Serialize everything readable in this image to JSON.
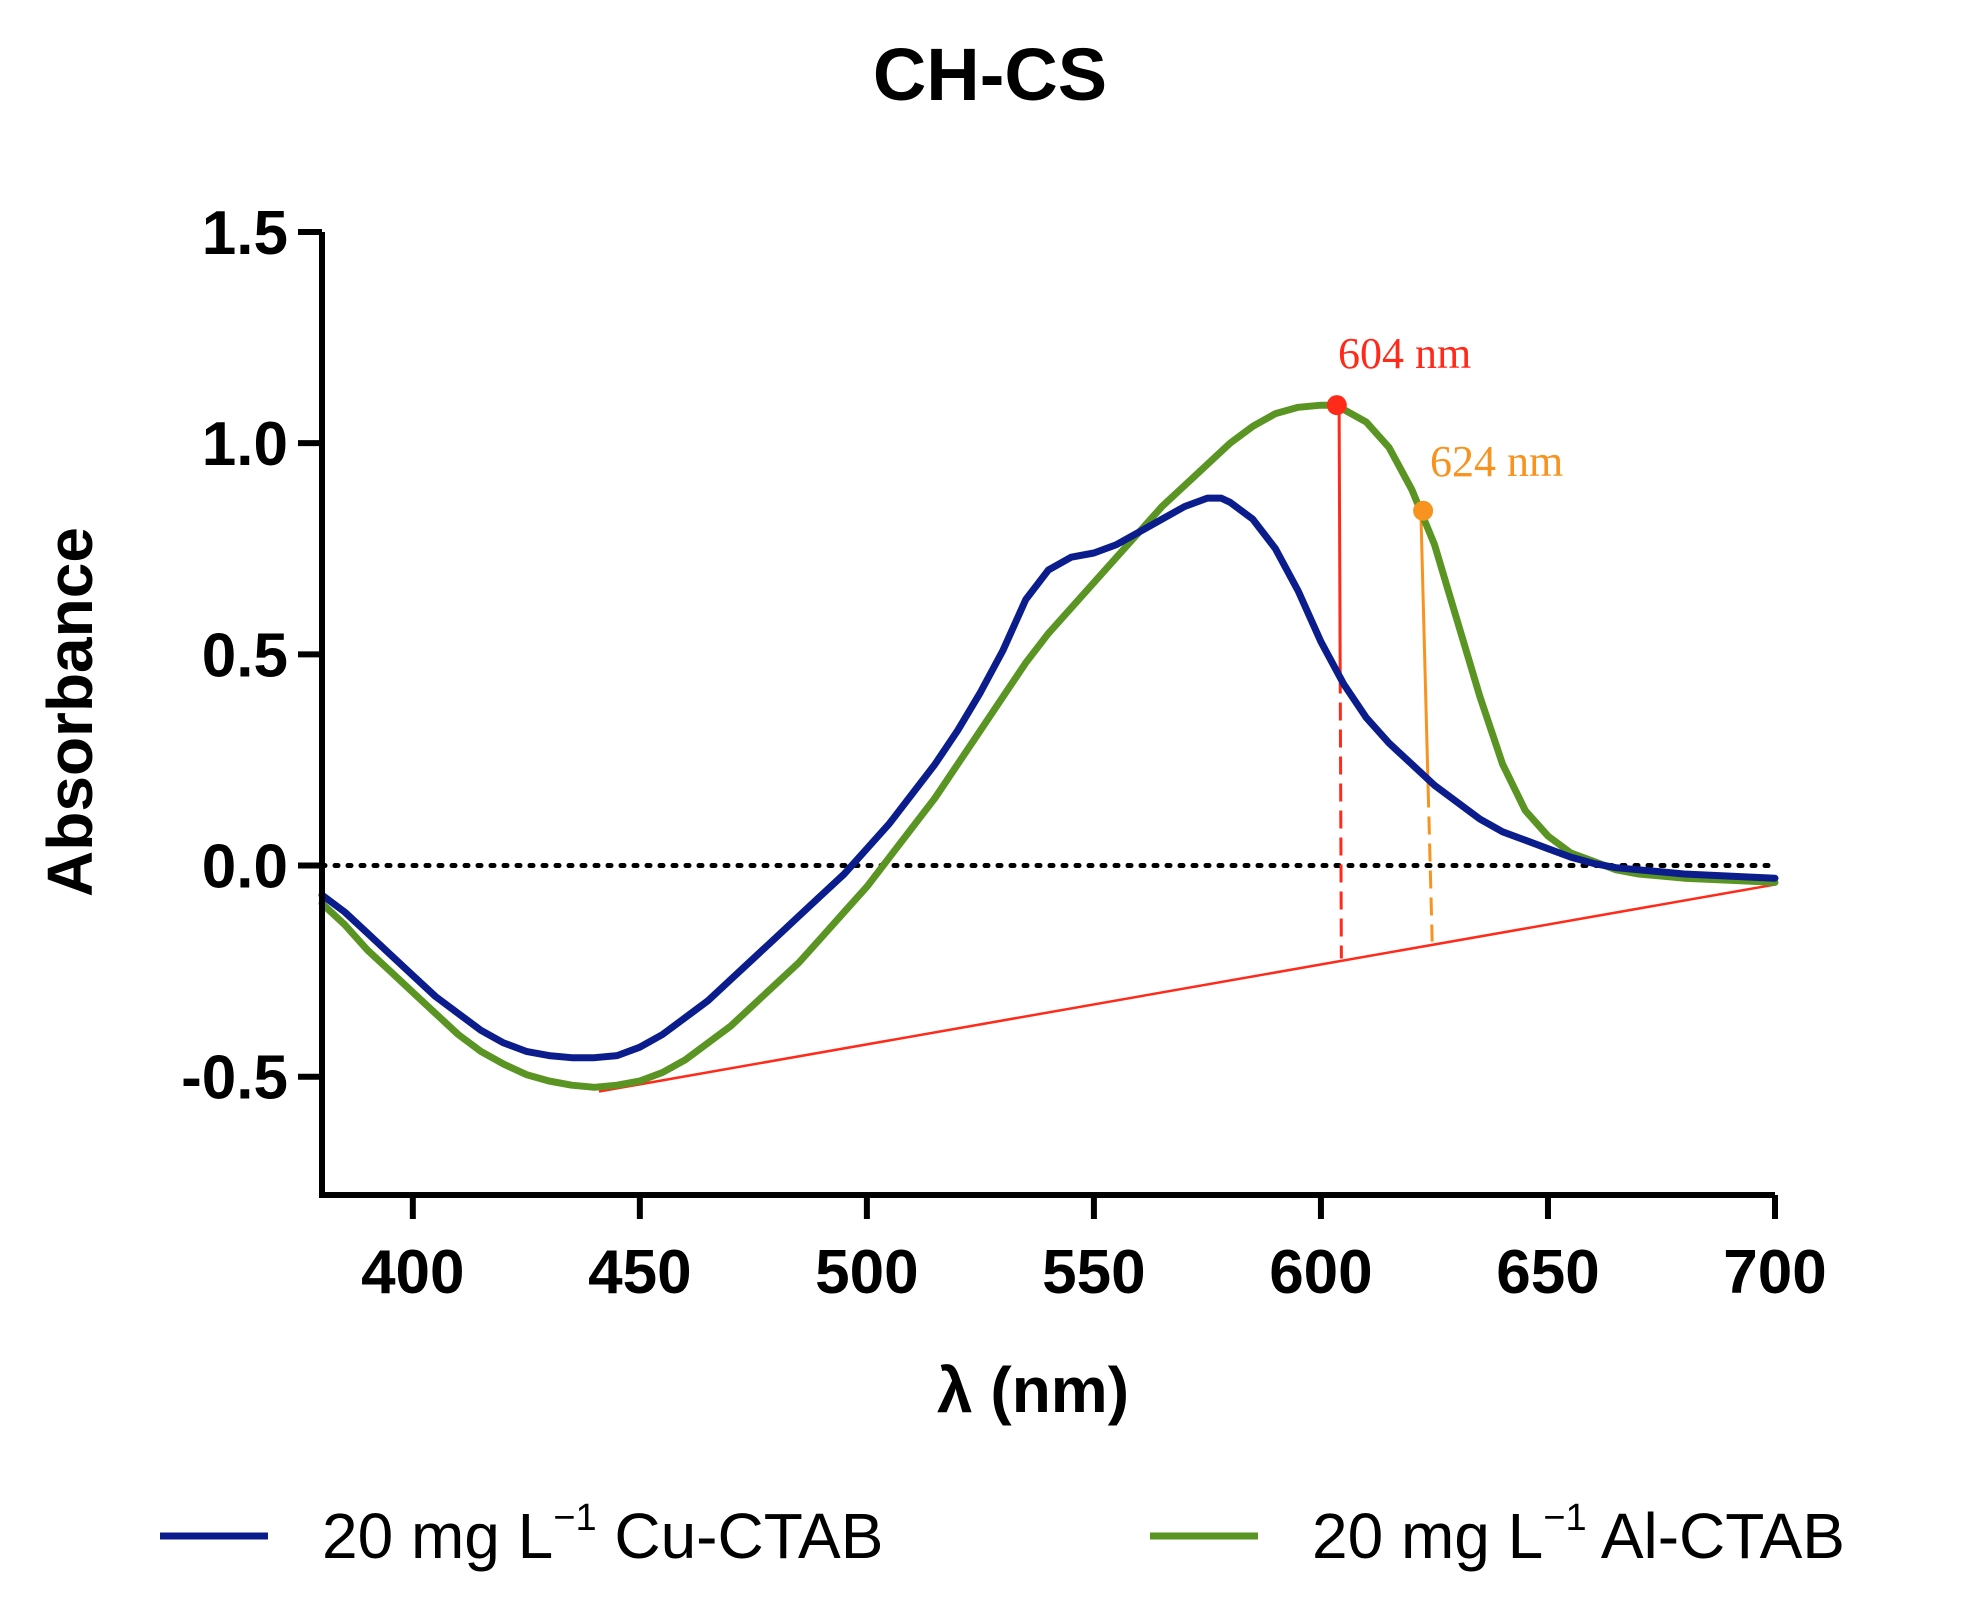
{
  "chart_data": {
    "type": "line",
    "title": "CH-CS",
    "xlabel": "λ (nm)",
    "ylabel": "Absorbance",
    "xlim": [
      380,
      700
    ],
    "ylim": [
      -0.78,
      1.5
    ],
    "xticks": [
      400,
      450,
      500,
      550,
      600,
      650,
      700
    ],
    "xtick_labels": [
      "400",
      "450",
      "500",
      "550",
      "600",
      "650",
      "700"
    ],
    "yticks": [
      -0.5,
      0.0,
      0.5,
      1.0,
      1.5
    ],
    "ytick_labels": [
      "-0.5",
      "0.0",
      "0.5",
      "1.0",
      "1.5"
    ],
    "zero_reference_line": 0.0,
    "colors": {
      "cu": "#0b1c8c",
      "al": "#5a9423",
      "peak604": "#ff2a1a",
      "peak624": "#f7931e",
      "baseline": "#ff2a1a",
      "zero": "#000000"
    },
    "series": [
      {
        "id": "cu",
        "name_prefix": "20 mg L",
        "name_sup": "−1",
        "name_suffix": " Cu-CTAB",
        "x": [
          380,
          385,
          390,
          395,
          400,
          405,
          410,
          415,
          420,
          425,
          430,
          435,
          440,
          445,
          450,
          455,
          460,
          465,
          470,
          475,
          480,
          485,
          490,
          495,
          500,
          505,
          510,
          515,
          520,
          525,
          530,
          535,
          540,
          545,
          550,
          555,
          560,
          565,
          570,
          575,
          578,
          580,
          585,
          590,
          595,
          600,
          605,
          610,
          615,
          620,
          625,
          630,
          635,
          640,
          645,
          650,
          655,
          660,
          665,
          670,
          675,
          680,
          690,
          700
        ],
        "y": [
          -0.07,
          -0.11,
          -0.16,
          -0.21,
          -0.26,
          -0.31,
          -0.35,
          -0.39,
          -0.42,
          -0.44,
          -0.45,
          -0.455,
          -0.455,
          -0.45,
          -0.43,
          -0.4,
          -0.36,
          -0.32,
          -0.27,
          -0.22,
          -0.17,
          -0.12,
          -0.07,
          -0.02,
          0.04,
          0.1,
          0.17,
          0.24,
          0.32,
          0.41,
          0.51,
          0.63,
          0.7,
          0.73,
          0.74,
          0.76,
          0.79,
          0.82,
          0.85,
          0.87,
          0.87,
          0.86,
          0.82,
          0.75,
          0.65,
          0.53,
          0.43,
          0.35,
          0.29,
          0.24,
          0.19,
          0.15,
          0.11,
          0.08,
          0.06,
          0.04,
          0.02,
          0.005,
          -0.005,
          -0.01,
          -0.015,
          -0.02,
          -0.025,
          -0.03
        ]
      },
      {
        "id": "al",
        "name_prefix": "20 mg L",
        "name_sup": "−1",
        "name_suffix": " Al-CTAB",
        "x": [
          380,
          385,
          390,
          395,
          400,
          405,
          410,
          415,
          420,
          425,
          430,
          435,
          440,
          445,
          450,
          455,
          460,
          465,
          470,
          475,
          480,
          485,
          490,
          495,
          500,
          505,
          510,
          515,
          520,
          525,
          530,
          535,
          540,
          545,
          550,
          555,
          560,
          565,
          570,
          575,
          580,
          585,
          590,
          595,
          600,
          603,
          605,
          610,
          615,
          620,
          625,
          630,
          635,
          640,
          645,
          650,
          655,
          660,
          665,
          670,
          680,
          690,
          700
        ],
        "y": [
          -0.09,
          -0.14,
          -0.2,
          -0.25,
          -0.3,
          -0.35,
          -0.4,
          -0.44,
          -0.47,
          -0.495,
          -0.51,
          -0.52,
          -0.525,
          -0.52,
          -0.51,
          -0.49,
          -0.46,
          -0.42,
          -0.38,
          -0.33,
          -0.28,
          -0.23,
          -0.17,
          -0.11,
          -0.05,
          0.02,
          0.09,
          0.16,
          0.24,
          0.32,
          0.4,
          0.48,
          0.55,
          0.61,
          0.67,
          0.73,
          0.79,
          0.85,
          0.9,
          0.95,
          1.0,
          1.04,
          1.07,
          1.085,
          1.09,
          1.09,
          1.08,
          1.05,
          0.99,
          0.89,
          0.76,
          0.58,
          0.4,
          0.24,
          0.13,
          0.07,
          0.03,
          0.01,
          -0.01,
          -0.02,
          -0.03,
          -0.035,
          -0.04
        ]
      }
    ],
    "baseline": {
      "x": [
        441,
        700
      ],
      "y": [
        -0.535,
        -0.045
      ]
    },
    "peaks": [
      {
        "label": "604 nm",
        "x": 604,
        "y": 1.09,
        "line_top_x": 604,
        "split_y": 0.45,
        "base_x": 604.5,
        "base_y": -0.22
      },
      {
        "label": "624 nm",
        "x": 624,
        "y": 0.84,
        "line_top_x": 622,
        "split_y": 0.18,
        "base_x": 624.5,
        "base_y": -0.18
      }
    ]
  }
}
